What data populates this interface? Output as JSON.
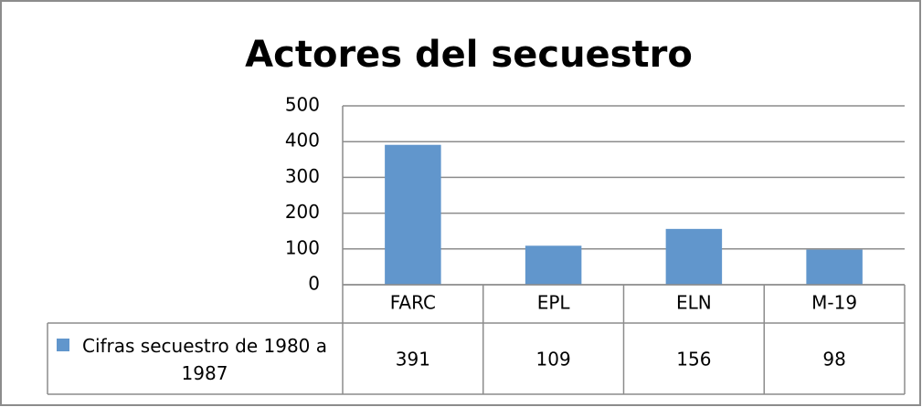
{
  "chart_data": {
    "type": "bar",
    "title": "Actores del secuestro",
    "categories": [
      "FARC",
      "EPL",
      "ELN",
      "M-19"
    ],
    "series": [
      {
        "name": "Cifras secuestro de 1980 a 1987",
        "color": "#6196cc",
        "values": [
          391,
          109,
          156,
          98
        ]
      }
    ],
    "ylim": [
      0,
      500
    ],
    "yticks": [
      0,
      100,
      200,
      300,
      400,
      500
    ],
    "grid": true,
    "data_table": true
  }
}
